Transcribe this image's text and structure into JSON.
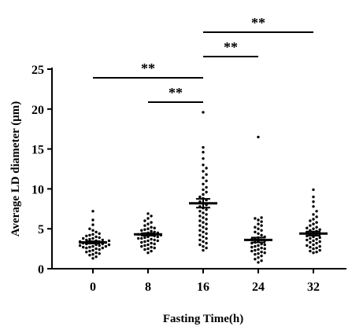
{
  "chart_data": {
    "type": "scatter",
    "xlabel": "Fasting Time(h)",
    "ylabel": "Average LD diameter (μm)",
    "ylim": [
      0,
      25
    ],
    "yticks": [
      "0",
      "5",
      "10",
      "15",
      "20",
      "25"
    ],
    "categories": [
      "0",
      "8",
      "16",
      "24",
      "32"
    ],
    "groups": [
      {
        "label": "0",
        "mean": 3.3,
        "sem": 0.15,
        "points": [
          7.2,
          6.1,
          5.5,
          5.0,
          4.8,
          4.6,
          4.4,
          4.3,
          4.2,
          4.1,
          4.0,
          3.9,
          3.8,
          3.8,
          3.7,
          3.6,
          3.6,
          3.5,
          3.5,
          3.4,
          3.4,
          3.3,
          3.3,
          3.2,
          3.2,
          3.1,
          3.1,
          3.0,
          3.0,
          2.9,
          2.9,
          2.8,
          2.8,
          2.7,
          2.7,
          2.6,
          2.6,
          2.5,
          2.4,
          2.3,
          2.2,
          2.1,
          2.0,
          1.9,
          1.8,
          1.7,
          1.5,
          1.3
        ]
      },
      {
        "label": "8",
        "mean": 4.3,
        "sem": 0.15,
        "points": [
          6.9,
          6.6,
          6.3,
          6.0,
          5.8,
          5.6,
          5.4,
          5.2,
          5.1,
          5.0,
          4.9,
          4.8,
          4.7,
          4.6,
          4.5,
          4.5,
          4.4,
          4.3,
          4.3,
          4.2,
          4.2,
          4.1,
          4.0,
          4.0,
          3.9,
          3.8,
          3.8,
          3.7,
          3.6,
          3.5,
          3.5,
          3.4,
          3.3,
          3.2,
          3.1,
          3.0,
          2.9,
          2.8,
          2.7,
          2.6,
          2.5,
          2.4,
          2.2,
          2.0
        ]
      },
      {
        "label": "16",
        "mean": 8.2,
        "sem": 0.55,
        "points": [
          19.6,
          15.2,
          14.6,
          13.8,
          13.0,
          12.6,
          12.2,
          11.8,
          11.4,
          11.0,
          10.6,
          10.2,
          9.9,
          9.6,
          9.3,
          9.0,
          8.8,
          8.6,
          8.4,
          8.2,
          8.0,
          7.8,
          7.6,
          7.4,
          7.2,
          7.0,
          6.8,
          6.6,
          6.4,
          6.2,
          6.0,
          5.8,
          5.6,
          5.4,
          5.2,
          5.0,
          4.8,
          4.6,
          4.4,
          4.2,
          4.0,
          3.8,
          3.6,
          3.4,
          3.2,
          3.0,
          2.8,
          2.6,
          2.3
        ]
      },
      {
        "label": "24",
        "mean": 3.6,
        "sem": 0.3,
        "points": [
          16.5,
          6.4,
          6.3,
          6.1,
          5.9,
          5.6,
          5.4,
          5.2,
          5.0,
          4.8,
          4.6,
          4.4,
          4.2,
          4.0,
          3.9,
          3.8,
          3.7,
          3.6,
          3.5,
          3.4,
          3.3,
          3.2,
          3.1,
          3.0,
          2.9,
          2.8,
          2.7,
          2.6,
          2.5,
          2.4,
          2.3,
          2.2,
          2.1,
          2.0,
          1.9,
          1.8,
          1.6,
          1.4,
          1.2,
          1.0,
          0.8
        ]
      },
      {
        "label": "32",
        "mean": 4.4,
        "sem": 0.25,
        "points": [
          9.9,
          9.0,
          8.4,
          7.8,
          7.2,
          6.8,
          6.5,
          6.2,
          6.0,
          5.8,
          5.6,
          5.4,
          5.2,
          5.1,
          5.0,
          4.9,
          4.8,
          4.7,
          4.6,
          4.5,
          4.4,
          4.3,
          4.2,
          4.1,
          4.0,
          3.9,
          3.8,
          3.7,
          3.6,
          3.5,
          3.4,
          3.3,
          3.2,
          3.0,
          2.9,
          2.8,
          2.7,
          2.6,
          2.5,
          2.3,
          2.2,
          2.1,
          2.0
        ]
      }
    ],
    "significance": [
      {
        "from": "0",
        "to": "16",
        "label": "**"
      },
      {
        "from": "8",
        "to": "16",
        "label": "**"
      },
      {
        "from": "16",
        "to": "24",
        "label": "**"
      },
      {
        "from": "16",
        "to": "32",
        "label": "**"
      }
    ]
  }
}
